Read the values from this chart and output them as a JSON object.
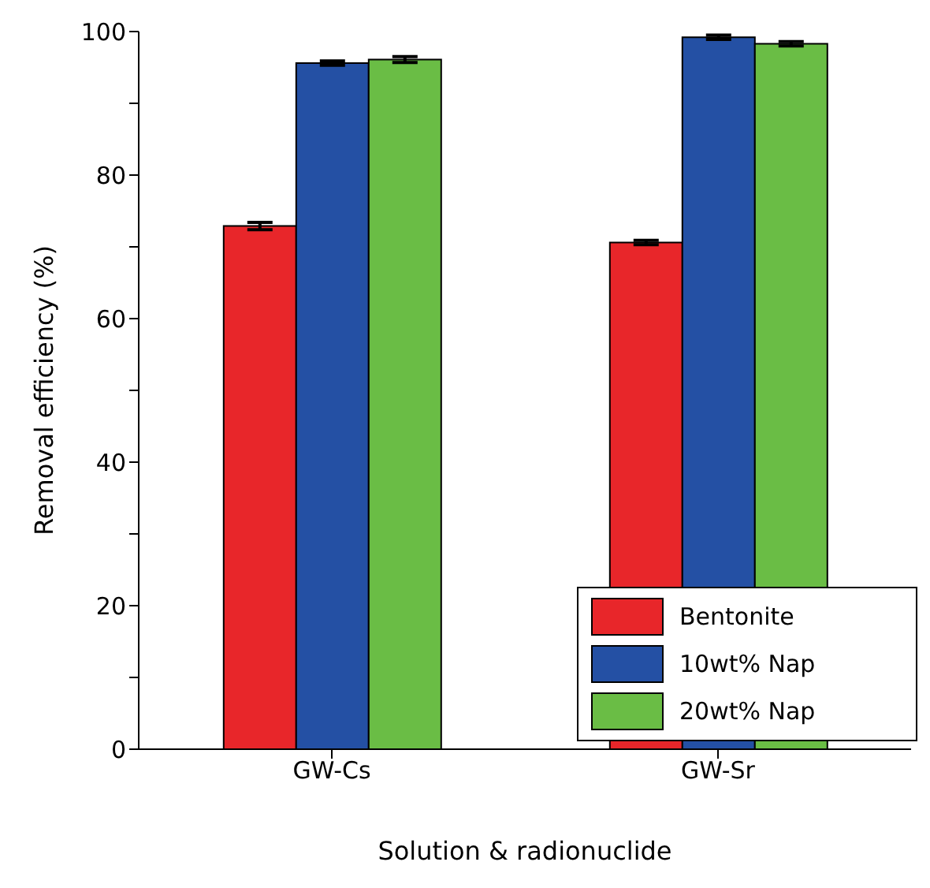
{
  "chart_data": {
    "type": "bar",
    "xlabel": "Solution & radionuclide",
    "ylabel": "Removal efficiency (%)",
    "categories": [
      "GW-Cs",
      "GW-Sr"
    ],
    "series": [
      {
        "name": "Bentonite",
        "color": "#e8262a",
        "values": [
          72.9,
          70.6
        ],
        "errors": [
          0.5,
          0.3
        ]
      },
      {
        "name": "10wt% Nap",
        "color": "#2450a4",
        "values": [
          95.6,
          99.2
        ],
        "errors": [
          0.3,
          0.3
        ]
      },
      {
        "name": "20wt% Nap",
        "color": "#6abd45",
        "values": [
          96.1,
          98.3
        ],
        "errors": [
          0.4,
          0.3
        ]
      }
    ],
    "ylim": [
      0,
      100
    ],
    "yticks": [
      0,
      {
        "value": 10,
        "label": null
      },
      20,
      {
        "value": 30,
        "label": null
      },
      40,
      {
        "value": 50,
        "label": null
      },
      60,
      {
        "value": 70,
        "label": null
      },
      80,
      {
        "value": 90,
        "label": null
      },
      100
    ],
    "legend": "bottom right",
    "grid": false
  }
}
